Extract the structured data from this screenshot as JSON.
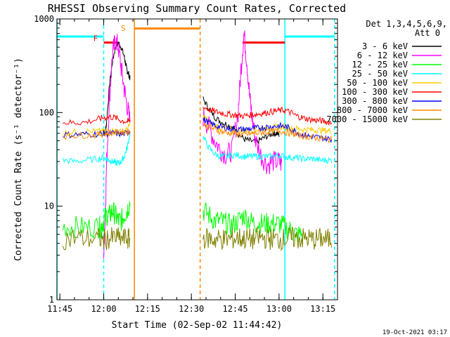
{
  "chart_data": {
    "type": "line",
    "title": "RHESSI Observing Summary Count Rates, Corrected",
    "xlabel": "Start Time (02-Sep-02 11:44:42)",
    "ylabel": "Corrected Count Rate (s⁻¹ detector⁻¹)",
    "y_scale": "log",
    "ylim": [
      1,
      1000
    ],
    "xlim_minutes_after_1144": [
      0,
      96
    ],
    "x_ticks": [
      {
        "label": "11:45",
        "v": 1
      },
      {
        "label": "12:00",
        "v": 16
      },
      {
        "label": "12:15",
        "v": 31
      },
      {
        "label": "12:30",
        "v": 46
      },
      {
        "label": "12:45",
        "v": 61
      },
      {
        "label": "13:00",
        "v": 76
      },
      {
        "label": "13:15",
        "v": 91
      }
    ],
    "y_ticks": [
      {
        "label": "1",
        "v": 1
      },
      {
        "label": "10",
        "v": 10
      },
      {
        "label": "100",
        "v": 100
      },
      {
        "label": "1000",
        "v": 1000
      }
    ],
    "legend": {
      "header1": "Det 1,3,4,5,6,9,",
      "header2": "Att 0",
      "placement": "right"
    },
    "series": [
      {
        "name": "3 - 6 keV",
        "color": "#000000",
        "points": [
          [
            16,
            60
          ],
          [
            16.5,
            62
          ],
          [
            17,
            80
          ],
          [
            18,
            200
          ],
          [
            19,
            350
          ],
          [
            20,
            500
          ],
          [
            21,
            560
          ],
          [
            22,
            500
          ],
          [
            23,
            400
          ],
          [
            23.5,
            330
          ],
          [
            24,
            280
          ],
          [
            24.5,
            260
          ],
          [
            25,
            230
          ],
          [
            50,
            140
          ],
          [
            52,
            110
          ],
          [
            54,
            90
          ],
          [
            56,
            80
          ],
          [
            58,
            75
          ],
          [
            60,
            70
          ],
          [
            61,
            66
          ],
          [
            62,
            60
          ],
          [
            64,
            52
          ],
          [
            66,
            50
          ],
          [
            68,
            48
          ],
          [
            70,
            52
          ],
          [
            72,
            56
          ],
          [
            74,
            60
          ],
          [
            75,
            60
          ],
          [
            76,
            58
          ]
        ]
      },
      {
        "name": "6 - 12 keV",
        "color": "#ff00ff",
        "points": [
          [
            16,
            3
          ],
          [
            16.5,
            8
          ],
          [
            17,
            30
          ],
          [
            18,
            150
          ],
          [
            19,
            420
          ],
          [
            20,
            600
          ],
          [
            21,
            500
          ],
          [
            22,
            300
          ],
          [
            23,
            180
          ],
          [
            24,
            120
          ],
          [
            25,
            80
          ],
          [
            50,
            90
          ],
          [
            52,
            70
          ],
          [
            54,
            50
          ],
          [
            56,
            40
          ],
          [
            58,
            35
          ],
          [
            60,
            40
          ],
          [
            62,
            100
          ],
          [
            63,
            300
          ],
          [
            64,
            700
          ],
          [
            65,
            350
          ],
          [
            66,
            140
          ],
          [
            67,
            80
          ],
          [
            68,
            50
          ],
          [
            70,
            34
          ],
          [
            72,
            28
          ],
          [
            74,
            30
          ],
          [
            76,
            30
          ],
          [
            77,
            28
          ]
        ]
      },
      {
        "name": "12 - 25 keV",
        "color": "#00ff00",
        "points": [
          [
            2,
            6
          ],
          [
            6,
            6
          ],
          [
            10,
            6
          ],
          [
            14,
            6
          ],
          [
            15,
            6
          ],
          [
            16,
            7
          ],
          [
            17,
            8
          ],
          [
            18,
            8
          ],
          [
            19,
            9
          ],
          [
            20,
            8
          ],
          [
            21,
            7
          ],
          [
            22,
            7
          ],
          [
            23,
            8
          ],
          [
            24,
            9
          ],
          [
            25,
            11
          ],
          [
            50,
            9
          ],
          [
            52,
            8
          ],
          [
            54,
            7
          ],
          [
            56,
            7
          ],
          [
            58,
            6.5
          ],
          [
            60,
            6.2
          ],
          [
            62,
            7
          ],
          [
            64,
            8
          ],
          [
            66,
            7
          ],
          [
            68,
            6.5
          ],
          [
            70,
            6.5
          ],
          [
            72,
            6.5
          ],
          [
            74,
            6.5
          ],
          [
            76,
            6.5
          ],
          [
            78,
            6
          ],
          [
            80,
            5.5
          ],
          [
            82,
            5
          ],
          [
            84,
            5
          ]
        ]
      },
      {
        "name": "25 - 50 keV",
        "color": "#00ffff",
        "points": [
          [
            2,
            31
          ],
          [
            6,
            30
          ],
          [
            10,
            31
          ],
          [
            14,
            32
          ],
          [
            16,
            33
          ],
          [
            17,
            32
          ],
          [
            18,
            31
          ],
          [
            19,
            30
          ],
          [
            20,
            29
          ],
          [
            21,
            29
          ],
          [
            22,
            30
          ],
          [
            23,
            34
          ],
          [
            24,
            42
          ],
          [
            25,
            60
          ],
          [
            50,
            55
          ],
          [
            52,
            42
          ],
          [
            54,
            36
          ],
          [
            56,
            34
          ],
          [
            58,
            34
          ],
          [
            60,
            35
          ],
          [
            62,
            35
          ],
          [
            64,
            34
          ],
          [
            66,
            34
          ],
          [
            68,
            34
          ],
          [
            70,
            34
          ],
          [
            72,
            34
          ],
          [
            74,
            34
          ],
          [
            76,
            35
          ],
          [
            78,
            34
          ],
          [
            80,
            33
          ],
          [
            82,
            33
          ],
          [
            84,
            32
          ],
          [
            86,
            32
          ],
          [
            88,
            32
          ],
          [
            90,
            31
          ],
          [
            92,
            31
          ],
          [
            94,
            31
          ]
        ]
      },
      {
        "name": "50 - 100 keV",
        "color": "#ffcc00",
        "points": [
          [
            2,
            60
          ],
          [
            6,
            62
          ],
          [
            10,
            63
          ],
          [
            14,
            63
          ],
          [
            16,
            63
          ],
          [
            18,
            65
          ],
          [
            20,
            64
          ],
          [
            22,
            62
          ],
          [
            24,
            65
          ],
          [
            25,
            75
          ],
          [
            50,
            92
          ],
          [
            52,
            80
          ],
          [
            54,
            72
          ],
          [
            56,
            69
          ],
          [
            58,
            67
          ],
          [
            60,
            66
          ],
          [
            62,
            65
          ],
          [
            64,
            64
          ],
          [
            66,
            65
          ],
          [
            68,
            66
          ],
          [
            70,
            67
          ],
          [
            72,
            68
          ],
          [
            74,
            69
          ],
          [
            76,
            70
          ],
          [
            78,
            70
          ],
          [
            80,
            68
          ],
          [
            82,
            67
          ],
          [
            84,
            66
          ],
          [
            86,
            66
          ],
          [
            88,
            65
          ],
          [
            90,
            65
          ],
          [
            92,
            64
          ],
          [
            94,
            64
          ]
        ]
      },
      {
        "name": "100 - 300 keV",
        "color": "#ff0000",
        "points": [
          [
            2,
            78
          ],
          [
            6,
            78
          ],
          [
            10,
            79
          ],
          [
            14,
            85
          ],
          [
            16,
            88
          ],
          [
            18,
            90
          ],
          [
            20,
            88
          ],
          [
            22,
            82
          ],
          [
            24,
            80
          ],
          [
            25,
            82
          ],
          [
            50,
            115
          ],
          [
            52,
            108
          ],
          [
            54,
            102
          ],
          [
            56,
            100
          ],
          [
            58,
            96
          ],
          [
            60,
            95
          ],
          [
            62,
            93
          ],
          [
            64,
            92
          ],
          [
            66,
            94
          ],
          [
            68,
            96
          ],
          [
            70,
            98
          ],
          [
            72,
            100
          ],
          [
            74,
            103
          ],
          [
            76,
            105
          ],
          [
            78,
            106
          ],
          [
            80,
            100
          ],
          [
            82,
            92
          ],
          [
            84,
            88
          ],
          [
            86,
            85
          ],
          [
            88,
            83
          ],
          [
            90,
            82
          ],
          [
            92,
            80
          ],
          [
            94,
            78
          ]
        ]
      },
      {
        "name": "300 - 800 keV",
        "color": "#0000ff",
        "points": [
          [
            2,
            58
          ],
          [
            6,
            58
          ],
          [
            10,
            59
          ],
          [
            14,
            59
          ],
          [
            16,
            60
          ],
          [
            18,
            60
          ],
          [
            20,
            60
          ],
          [
            22,
            59
          ],
          [
            24,
            60
          ],
          [
            25,
            65
          ],
          [
            50,
            85
          ],
          [
            52,
            78
          ],
          [
            54,
            73
          ],
          [
            56,
            70
          ],
          [
            58,
            68
          ],
          [
            60,
            67
          ],
          [
            62,
            66
          ],
          [
            64,
            66
          ],
          [
            66,
            67
          ],
          [
            68,
            68
          ],
          [
            70,
            69
          ],
          [
            72,
            70
          ],
          [
            74,
            71
          ],
          [
            76,
            72
          ],
          [
            78,
            71
          ],
          [
            80,
            67
          ],
          [
            82,
            62
          ],
          [
            84,
            58
          ],
          [
            86,
            56
          ],
          [
            88,
            55
          ],
          [
            90,
            54
          ],
          [
            92,
            53
          ],
          [
            94,
            52
          ]
        ]
      },
      {
        "name": "800 - 7000 keV",
        "color": "#ff8800",
        "points": [
          [
            2,
            56
          ],
          [
            6,
            57
          ],
          [
            10,
            57
          ],
          [
            14,
            58
          ],
          [
            16,
            59
          ],
          [
            18,
            60
          ],
          [
            20,
            61
          ],
          [
            22,
            62
          ],
          [
            24,
            62
          ],
          [
            25,
            64
          ],
          [
            50,
            75
          ],
          [
            52,
            70
          ],
          [
            54,
            66
          ],
          [
            56,
            63
          ],
          [
            58,
            61
          ],
          [
            60,
            60
          ],
          [
            62,
            59
          ],
          [
            64,
            58
          ],
          [
            66,
            59
          ],
          [
            68,
            60
          ],
          [
            70,
            61
          ],
          [
            72,
            62
          ],
          [
            74,
            63
          ],
          [
            76,
            64
          ],
          [
            78,
            62
          ],
          [
            80,
            60
          ],
          [
            82,
            58
          ],
          [
            84,
            56
          ],
          [
            86,
            55
          ],
          [
            88,
            54
          ],
          [
            90,
            53
          ],
          [
            92,
            52
          ],
          [
            94,
            51
          ]
        ]
      },
      {
        "name": "7000 - 15000 keV",
        "color": "#808000",
        "points": [
          [
            2,
            4.5
          ],
          [
            6,
            4.6
          ],
          [
            10,
            4.5
          ],
          [
            14,
            4.5
          ],
          [
            16,
            4.4
          ],
          [
            18,
            4.5
          ],
          [
            20,
            4.6
          ],
          [
            22,
            4.5
          ],
          [
            24,
            4.5
          ],
          [
            25,
            4.4
          ],
          [
            50,
            4.6
          ],
          [
            52,
            4.5
          ],
          [
            54,
            4.4
          ],
          [
            56,
            4.5
          ],
          [
            58,
            4.4
          ],
          [
            60,
            4.5
          ],
          [
            62,
            4.6
          ],
          [
            64,
            4.5
          ],
          [
            66,
            4.4
          ],
          [
            68,
            4.5
          ],
          [
            70,
            4.6
          ],
          [
            72,
            4.5
          ],
          [
            74,
            4.5
          ],
          [
            76,
            4.4
          ],
          [
            78,
            4.5
          ],
          [
            80,
            4.6
          ],
          [
            82,
            4.5
          ],
          [
            84,
            4.5
          ],
          [
            86,
            4.5
          ],
          [
            88,
            4.4
          ],
          [
            90,
            4.5
          ],
          [
            92,
            4.4
          ],
          [
            94,
            4.4
          ]
        ]
      }
    ],
    "annotations": [
      {
        "label": "F",
        "color": "#ff0000",
        "x": 14,
        "y": 620
      },
      {
        "label": "S",
        "color": "#ff8800",
        "x": 23.5,
        "y": 800
      }
    ],
    "bars": [
      {
        "color": "#00ffff",
        "x0": 0,
        "x1": 16,
        "y": 650
      },
      {
        "color": "#ff0000",
        "x0": 16,
        "x1": 21,
        "y": 560
      },
      {
        "color": "#ff8800",
        "x0": 26.5,
        "x1": 49,
        "y": 790
      },
      {
        "color": "#ff0000",
        "x0": 63.5,
        "x1": 78,
        "y": 560
      },
      {
        "color": "#00ffff",
        "x0": 78,
        "x1": 95,
        "y": 650
      }
    ],
    "vlines": [
      {
        "color": "#00ffff",
        "x": 0,
        "style": "solid"
      },
      {
        "color": "#00ffff",
        "x": 16,
        "style": "dashed"
      },
      {
        "color": "#ff8800",
        "x": 26.5,
        "style": "solid"
      },
      {
        "color": "#ff8800",
        "x": 49,
        "style": "dashed"
      },
      {
        "color": "#00ffff",
        "x": 78,
        "style": "solid"
      },
      {
        "color": "#00ffff",
        "x": 95,
        "style": "dashed"
      }
    ]
  },
  "footer": {
    "date": "19-Oct-2021 03:17"
  }
}
